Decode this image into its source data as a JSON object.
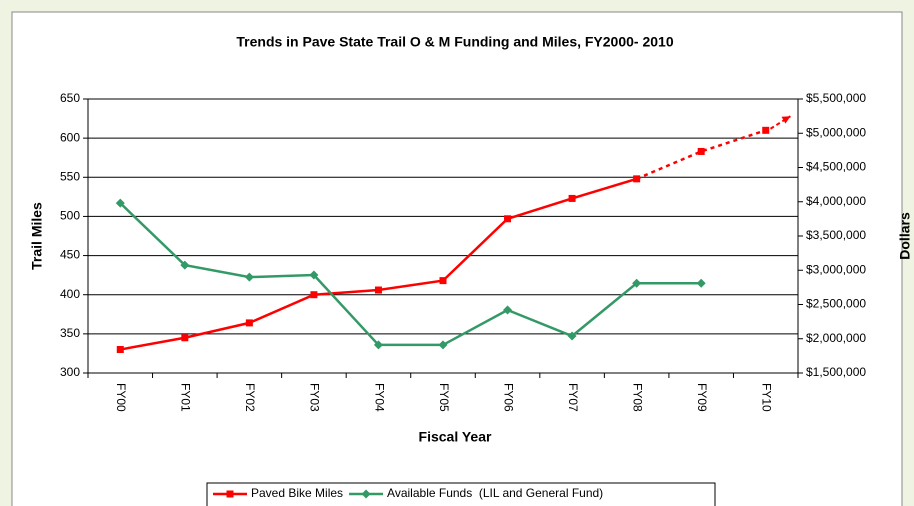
{
  "chart_data": {
    "type": "line",
    "title": "Trends in Pave State Trail O & M Funding and Miles, FY2000- 2010",
    "x_label": "Fiscal Year",
    "y_label": "Trail Miles",
    "y2_label": "Dollars",
    "categories": [
      "FY00",
      "FY01",
      "FY02",
      "FY03",
      "FY04",
      "FY05",
      "FY06",
      "FY07",
      "FY08",
      "FY09",
      "FY10"
    ],
    "series": [
      {
        "name": "Paved Bike Miles",
        "color": "#ff0000",
        "marker": "square",
        "dashed_from_index": 8,
        "values": [
          330,
          345,
          364,
          400,
          406,
          418,
          497,
          523,
          548,
          583,
          610
        ]
      },
      {
        "name": "Available Funds  (LIL and General Fund)",
        "color": "#339966",
        "marker": "diamond",
        "axis": "y2",
        "values": [
          3980000,
          3075000,
          2900000,
          2930000,
          1910000,
          1910000,
          2420000,
          2040000,
          2810000,
          2810000,
          null
        ]
      }
    ],
    "ylim": [
      300,
      650
    ],
    "yticks": [
      300,
      350,
      400,
      450,
      500,
      550,
      600,
      650
    ],
    "y2lim": [
      1500000,
      5500000
    ],
    "y2ticks": [
      {
        "value": 1500000,
        "label": "$1,500,000"
      },
      {
        "value": 2000000,
        "label": "$2,000,000"
      },
      {
        "value": 2500000,
        "label": "$2,500,000"
      },
      {
        "value": 3000000,
        "label": "$3,000,000"
      },
      {
        "value": 3500000,
        "label": "$3,500,000"
      },
      {
        "value": 4000000,
        "label": "$4,000,000"
      },
      {
        "value": 4500000,
        "label": "$4,500,000"
      },
      {
        "value": 5000000,
        "label": "$5,000,000"
      },
      {
        "value": 5500000,
        "label": "$5,500,000"
      }
    ],
    "grid": true,
    "legend": "bottom"
  }
}
